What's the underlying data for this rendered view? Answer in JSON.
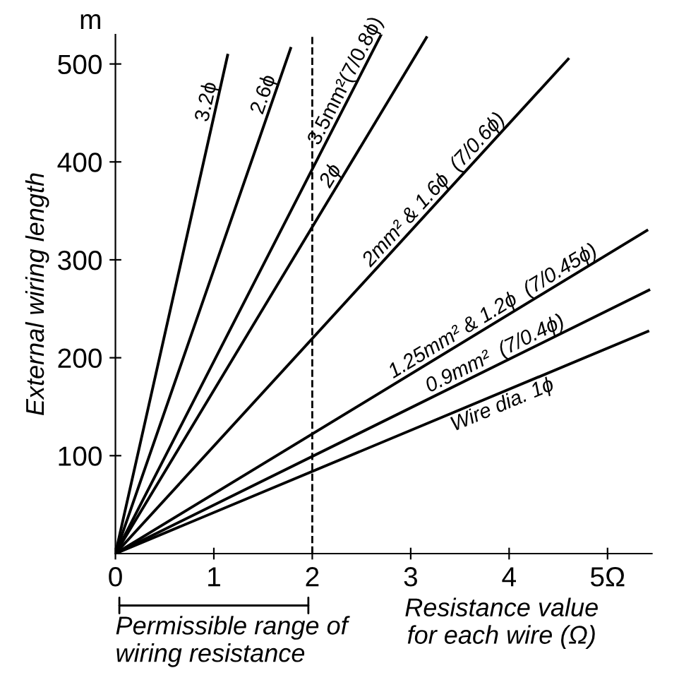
{
  "chart_data": {
    "type": "line",
    "xlabel": "Resistance value\nfor each wire (Ω)",
    "ylabel": "External wiring length",
    "annotations": [
      "m",
      "Permissible range of\nwiring resistance"
    ],
    "series": [
      {
        "name": "3.2ϕ",
        "color": "#000000",
        "x": [
          0,
          1.14
        ],
        "values": [
          0,
          509
        ]
      },
      {
        "name": "2.6ϕ",
        "color": "#000000",
        "x": [
          0,
          1.78
        ],
        "values": [
          0,
          516
        ]
      },
      {
        "name": "3.5mm²(7/0.8ϕ)",
        "color": "#000000",
        "x": [
          0,
          2.7
        ],
        "values": [
          0,
          530
        ]
      },
      {
        "name": "2ϕ",
        "color": "#000000",
        "x": [
          0,
          3.16
        ],
        "values": [
          0,
          527
        ]
      },
      {
        "name": "2mm² & 1.6ϕ  (7/0.6ϕ)",
        "color": "#000000",
        "x": [
          0,
          4.6
        ],
        "values": [
          0,
          505
        ]
      },
      {
        "name": "1.25mm² & 1.2ϕ  (7/0.45ϕ)",
        "color": "#000000",
        "x": [
          0,
          5.4
        ],
        "values": [
          0,
          330
        ]
      },
      {
        "name": "0.9mm²  (7/0.4ϕ)",
        "color": "#000000",
        "x": [
          0,
          5.42
        ],
        "values": [
          0,
          269
        ]
      },
      {
        "name": "Wire dia. 1ϕ",
        "color": "#000000",
        "x": [
          0,
          5.41
        ],
        "values": [
          0,
          227
        ]
      }
    ],
    "xlim": [
      0,
      5.45
    ],
    "ylim": [
      0,
      530
    ],
    "xticks": [
      0,
      1,
      2,
      3,
      4,
      {
        "value": 5,
        "label": "5Ω"
      }
    ],
    "yticks": [
      100,
      200,
      300,
      400,
      500
    ],
    "ref_lines": [
      {
        "axis": "x",
        "value": 2,
        "label": null,
        "color": "#000000",
        "line_style": "dashed"
      }
    ],
    "grid": false,
    "marker": "none",
    "line_style": "solid"
  }
}
